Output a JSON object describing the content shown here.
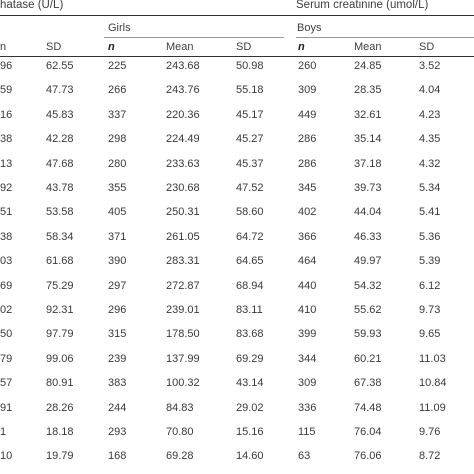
{
  "headers": {
    "alp_title": "hatase (U/L)",
    "creat_title": "Serum creatinine (umol/L)",
    "girls_label": "Girls",
    "boys_label": "Boys"
  },
  "columns": {
    "left_mean_partial": "n",
    "left_sd": "SD",
    "girls_n": "n",
    "girls_mean": "Mean",
    "girls_sd": "SD",
    "boys_n": "n",
    "boys_mean": "Mean",
    "boys_sd": "SD"
  },
  "rows": [
    [
      "96",
      "62.55",
      "225",
      "243.68",
      "50.98",
      "260",
      "24.85",
      "3.52"
    ],
    [
      "59",
      "47.73",
      "266",
      "243.76",
      "55.18",
      "309",
      "28.35",
      "4.04"
    ],
    [
      "16",
      "45.83",
      "337",
      "220.36",
      "45.17",
      "449",
      "32.61",
      "4.23"
    ],
    [
      "38",
      "42.28",
      "298",
      "224.49",
      "45.27",
      "286",
      "35.14",
      "4.35"
    ],
    [
      "13",
      "47.68",
      "280",
      "233.63",
      "45.37",
      "286",
      "37.18",
      "4.32"
    ],
    [
      "92",
      "43.78",
      "355",
      "230.68",
      "47.52",
      "345",
      "39.73",
      "5.34"
    ],
    [
      "51",
      "53.58",
      "405",
      "250.31",
      "58.60",
      "402",
      "44.04",
      "5.41"
    ],
    [
      "38",
      "58.34",
      "371",
      "261.05",
      "64.72",
      "366",
      "46.33",
      "5.36"
    ],
    [
      "03",
      "61.68",
      "390",
      "283.31",
      "64.65",
      "464",
      "49.97",
      "5.39"
    ],
    [
      "69",
      "75.29",
      "297",
      "272.87",
      "68.94",
      "440",
      "54.32",
      "6.12"
    ],
    [
      "02",
      "92.31",
      "296",
      "239.01",
      "83.11",
      "410",
      "55.62",
      "9.73"
    ],
    [
      "50",
      "97.79",
      "315",
      "178.50",
      "83.68",
      "399",
      "59.93",
      "9.65"
    ],
    [
      "79",
      "99.06",
      "239",
      "137.99",
      "69.29",
      "344",
      "60.21",
      "11.03"
    ],
    [
      "57",
      "80.91",
      "383",
      "100.32",
      "43.14",
      "309",
      "67.38",
      "10.84"
    ],
    [
      "91",
      "28.26",
      "244",
      "84.83",
      "29.02",
      "336",
      "74.48",
      "11.09"
    ],
    [
      "1",
      "18.18",
      "293",
      "70.80",
      "15.16",
      "115",
      "76.04",
      "9.76"
    ],
    [
      "10",
      "19.79",
      "168",
      "69.28",
      "14.60",
      "63",
      "76.06",
      "8.72"
    ]
  ]
}
